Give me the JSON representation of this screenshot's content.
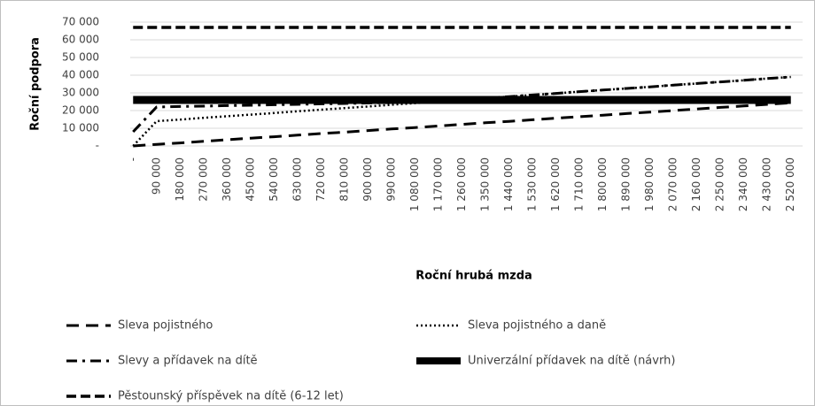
{
  "chart_data": {
    "type": "line",
    "y_label": "Roční podpora",
    "x_label": "Roční hrubá mzda",
    "categories": [
      "-",
      "90 000",
      "180 000",
      "270 000",
      "360 000",
      "450 000",
      "540 000",
      "630 000",
      "720 000",
      "810 000",
      "900 000",
      "990 000",
      "1 080 000",
      "1 170 000",
      "1 260 000",
      "1 350 000",
      "1 440 000",
      "1 530 000",
      "1 620 000",
      "1 710 000",
      "1 800 000",
      "1 890 000",
      "1 980 000",
      "2 070 000",
      "2 160 000",
      "2 250 000",
      "2 340 000",
      "2 430 000",
      "2 520 000"
    ],
    "ylim": [
      0,
      70000
    ],
    "yticks": [
      {
        "value": 0,
        "label": "-"
      },
      {
        "value": 10000,
        "label": "10 000"
      },
      {
        "value": 20000,
        "label": "20 000"
      },
      {
        "value": 30000,
        "label": "30 000"
      },
      {
        "value": 40000,
        "label": "40 000"
      },
      {
        "value": 50000,
        "label": "50 000"
      },
      {
        "value": 60000,
        "label": "60 000"
      },
      {
        "value": 70000,
        "label": "70 000"
      }
    ],
    "grid": true,
    "legend": "bottom",
    "series": [
      {
        "name": "Sleva pojistného",
        "color": "#000000",
        "dash": "long-dash",
        "values": [
          0,
          900,
          1700,
          2600,
          3500,
          4400,
          5200,
          6100,
          7000,
          7800,
          8700,
          9600,
          10400,
          11300,
          12200,
          13100,
          13900,
          14800,
          15700,
          16500,
          17400,
          18300,
          19100,
          20000,
          20900,
          21800,
          22600,
          23500,
          24400
        ]
      },
      {
        "name": "Sleva pojistného a daně",
        "color": "#000000",
        "dash": "dot",
        "values": [
          0,
          14000,
          14900,
          15900,
          16800,
          17700,
          18600,
          19600,
          20500,
          21400,
          22300,
          23300,
          24200,
          25100,
          26000,
          27000,
          27900,
          28800,
          29700,
          30700,
          31600,
          32500,
          33400,
          34400,
          35300,
          36200,
          37100,
          38100,
          39000
        ]
      },
      {
        "name": "Slevy a přídavek na dítě",
        "color": "#000000",
        "dash": "dash-dot",
        "values": [
          8000,
          22000,
          22300,
          22500,
          22800,
          23000,
          23300,
          23500,
          23800,
          24000,
          24300,
          24500,
          25100,
          25100,
          26000,
          27000,
          27900,
          28800,
          29700,
          30700,
          31600,
          32500,
          33400,
          34400,
          35300,
          36200,
          37100,
          38100,
          39000
        ]
      },
      {
        "name": "Univerzální přídavek na dítě (návrh)",
        "color": "#000000",
        "dash": "solid-thick",
        "values": [
          26000,
          26000,
          26000,
          26000,
          26000,
          26000,
          26000,
          26000,
          26000,
          26000,
          26000,
          26000,
          26000,
          26000,
          26000,
          26000,
          26000,
          26000,
          26000,
          26000,
          26000,
          26000,
          26000,
          26000,
          26000,
          26000,
          26000,
          26000,
          26000
        ]
      },
      {
        "name": "Pěstounský příspěvek na dítě (6-12 let)",
        "color": "#000000",
        "dash": "dash",
        "values": [
          67000,
          67000,
          67000,
          67000,
          67000,
          67000,
          67000,
          67000,
          67000,
          67000,
          67000,
          67000,
          67000,
          67000,
          67000,
          67000,
          67000,
          67000,
          67000,
          67000,
          67000,
          67000,
          67000,
          67000,
          67000,
          67000,
          67000,
          67000,
          67000
        ]
      }
    ]
  }
}
